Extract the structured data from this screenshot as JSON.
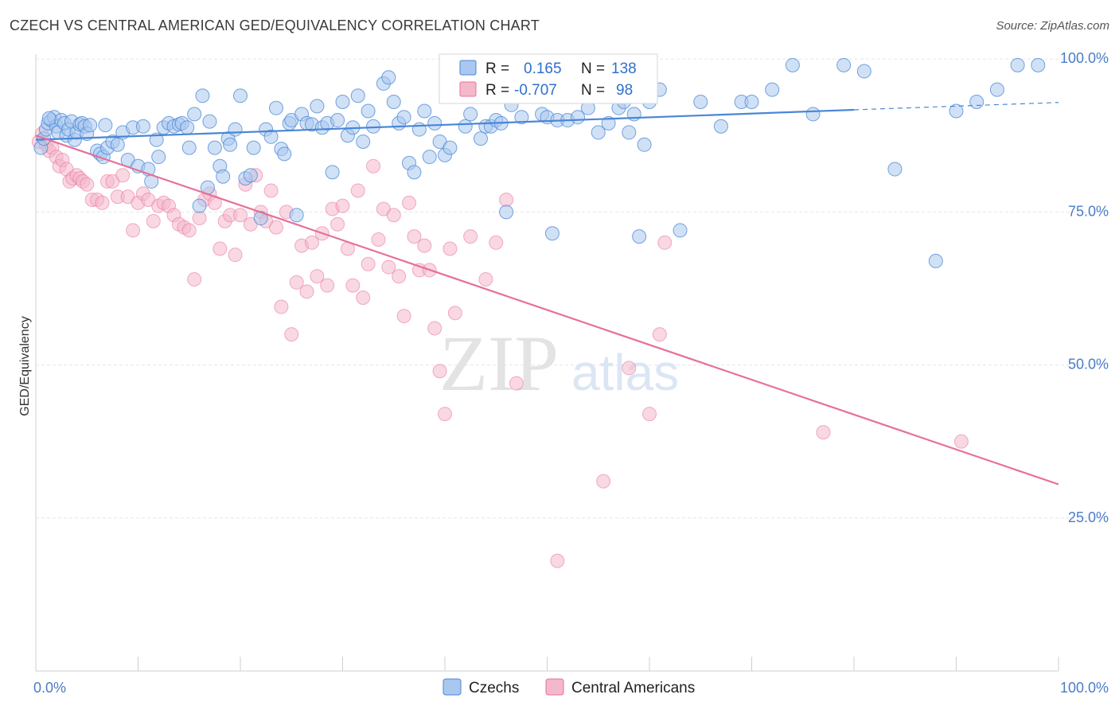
{
  "title": "CZECH VS CENTRAL AMERICAN GED/EQUIVALENCY CORRELATION CHART",
  "source": "Source: ZipAtlas.com",
  "watermark": {
    "zip": "ZIP",
    "atlas": "atlas"
  },
  "colors": {
    "czech": "#4a86d6",
    "czech_fill": "#aac8ef",
    "central": "#e76f9a",
    "central_fill": "#f4b8cb",
    "grid": "#e6e6e6",
    "axis_label": "#4a7cc9"
  },
  "legend": {
    "czech": {
      "r_label": "R =",
      "r_value": "0.165",
      "n_label": "N =",
      "n_value": "138"
    },
    "central": {
      "r_label": "R =",
      "r_value": "-0.707",
      "n_label": "N =",
      "n_value": "98"
    }
  },
  "chart_data": {
    "type": "scatter",
    "xlabel": "",
    "ylabel": "GED/Equivalency",
    "xlim": [
      0,
      100
    ],
    "ylim": [
      0,
      100
    ],
    "x_tick_labels": [
      {
        "value": 0,
        "label": "0.0%"
      },
      {
        "value": 100,
        "label": "100.0%"
      }
    ],
    "y_tick_labels": [
      {
        "value": 100,
        "label": "100.0%"
      },
      {
        "value": 75,
        "label": "75.0%"
      },
      {
        "value": 50,
        "label": "50.0%"
      },
      {
        "value": 25,
        "label": "25.0%"
      }
    ],
    "grid": true,
    "legend_position": "top-center",
    "series": [
      {
        "name": "Czechs",
        "color": "#4a86d6",
        "trend": {
          "x0": 0,
          "y0": 86.8,
          "x1": 80,
          "y1": 91.7,
          "dashed_to_x": 100,
          "dashed_to_y": 92.9
        },
        "points": [
          [
            0.5,
            85.5
          ],
          [
            0.8,
            87
          ],
          [
            1.0,
            88.5
          ],
          [
            1.2,
            89.5
          ],
          [
            1.5,
            90
          ],
          [
            1.8,
            90.5
          ],
          [
            2.0,
            89
          ],
          [
            2.2,
            88
          ],
          [
            2.5,
            90
          ],
          [
            2.8,
            89.5
          ],
          [
            3.0,
            87.5
          ],
          [
            3.2,
            88.5
          ],
          [
            3.5,
            89.8
          ],
          [
            3.8,
            86.8
          ],
          [
            4.0,
            88
          ],
          [
            4.3,
            89.3
          ],
          [
            4.5,
            89.5
          ],
          [
            4.8,
            89
          ],
          [
            5.0,
            87.8
          ],
          [
            5.3,
            89.2
          ],
          [
            6.0,
            85
          ],
          [
            6.3,
            84.5
          ],
          [
            6.6,
            84
          ],
          [
            7.0,
            85.5
          ],
          [
            7.5,
            86.5
          ],
          [
            8.0,
            86
          ],
          [
            8.5,
            88
          ],
          [
            9.0,
            83.5
          ],
          [
            9.5,
            88.8
          ],
          [
            10.0,
            82.5
          ],
          [
            10.5,
            89
          ],
          [
            11.0,
            82
          ],
          [
            11.3,
            80
          ],
          [
            11.8,
            86.8
          ],
          [
            12.0,
            84
          ],
          [
            12.5,
            88.8
          ],
          [
            13.0,
            89.5
          ],
          [
            13.5,
            89
          ],
          [
            14.0,
            89.3
          ],
          [
            14.3,
            89.5
          ],
          [
            14.8,
            88.8
          ],
          [
            15.0,
            85.5
          ],
          [
            15.5,
            91
          ],
          [
            16.0,
            76
          ],
          [
            16.3,
            94
          ],
          [
            16.8,
            79
          ],
          [
            17.0,
            89.8
          ],
          [
            17.5,
            85.5
          ],
          [
            18.0,
            82.5
          ],
          [
            18.3,
            80.8
          ],
          [
            18.8,
            87
          ],
          [
            19.0,
            86
          ],
          [
            19.5,
            88.5
          ],
          [
            20.0,
            94
          ],
          [
            20.5,
            80.5
          ],
          [
            21.0,
            81
          ],
          [
            21.3,
            85.5
          ],
          [
            22.0,
            74
          ],
          [
            22.5,
            88.5
          ],
          [
            23.0,
            87.3
          ],
          [
            23.5,
            92
          ],
          [
            24.0,
            85.3
          ],
          [
            24.3,
            84.5
          ],
          [
            24.8,
            89.5
          ],
          [
            25.0,
            90
          ],
          [
            25.5,
            74.5
          ],
          [
            26.0,
            91
          ],
          [
            26.5,
            89.5
          ],
          [
            27.0,
            89.3
          ],
          [
            27.5,
            92.3
          ],
          [
            28.0,
            88.8
          ],
          [
            28.5,
            89.5
          ],
          [
            29.0,
            81.5
          ],
          [
            29.5,
            90
          ],
          [
            30.0,
            93
          ],
          [
            30.5,
            87.5
          ],
          [
            31.0,
            88.8
          ],
          [
            31.5,
            94
          ],
          [
            32.0,
            86.5
          ],
          [
            32.5,
            91.5
          ],
          [
            33.0,
            89
          ],
          [
            34.0,
            96
          ],
          [
            34.5,
            97
          ],
          [
            35.0,
            93
          ],
          [
            35.5,
            89.5
          ],
          [
            36.0,
            90.5
          ],
          [
            36.5,
            83
          ],
          [
            37.0,
            81.5
          ],
          [
            37.5,
            88.5
          ],
          [
            38.0,
            91.5
          ],
          [
            38.5,
            84
          ],
          [
            39.0,
            89.5
          ],
          [
            39.5,
            86.5
          ],
          [
            40.0,
            84.3
          ],
          [
            40.5,
            85.5
          ],
          [
            41.0,
            94.5
          ],
          [
            41.5,
            98
          ],
          [
            42.0,
            89
          ],
          [
            42.5,
            91
          ],
          [
            43.0,
            94
          ],
          [
            43.5,
            87
          ],
          [
            44.0,
            89
          ],
          [
            44.5,
            89
          ],
          [
            45.0,
            90
          ],
          [
            45.5,
            89.5
          ],
          [
            46.0,
            75
          ],
          [
            46.5,
            92.5
          ],
          [
            47.0,
            99.5
          ],
          [
            47.5,
            90.5
          ],
          [
            48.0,
            97
          ],
          [
            49.0,
            95
          ],
          [
            49.5,
            91
          ],
          [
            50.0,
            90.5
          ],
          [
            50.5,
            71.5
          ],
          [
            51.0,
            90
          ],
          [
            51.5,
            94
          ],
          [
            52.0,
            90
          ],
          [
            53.0,
            90.5
          ],
          [
            54.0,
            92
          ],
          [
            55.0,
            88
          ],
          [
            56.0,
            89.5
          ],
          [
            57.0,
            92
          ],
          [
            57.5,
            93
          ],
          [
            58.0,
            88
          ],
          [
            58.5,
            91
          ],
          [
            59.0,
            71
          ],
          [
            59.5,
            86
          ],
          [
            60.0,
            93
          ],
          [
            61.0,
            95
          ],
          [
            63.0,
            72
          ],
          [
            65.0,
            93
          ],
          [
            67.0,
            89
          ],
          [
            69.0,
            93
          ],
          [
            70.0,
            93
          ],
          [
            72.0,
            95
          ],
          [
            74.0,
            99
          ],
          [
            76.0,
            91
          ],
          [
            79.0,
            99
          ],
          [
            81.0,
            98
          ],
          [
            84.0,
            82
          ],
          [
            88.0,
            67
          ],
          [
            90.0,
            91.5
          ],
          [
            92.0,
            93
          ],
          [
            94.0,
            95
          ],
          [
            96.0,
            99
          ],
          [
            98.0,
            99
          ],
          [
            1.3,
            90.3
          ],
          [
            6.8,
            89.2
          ]
        ]
      },
      {
        "name": "Central Americans",
        "color": "#e76f9a",
        "trend": {
          "x0": 0,
          "y0": 87.5,
          "x1": 100,
          "y1": 30.5
        },
        "points": [
          [
            0.3,
            86.5
          ],
          [
            0.6,
            87.8
          ],
          [
            1.0,
            86
          ],
          [
            1.3,
            85
          ],
          [
            1.6,
            85.5
          ],
          [
            2.0,
            84
          ],
          [
            2.3,
            82.5
          ],
          [
            2.6,
            83.5
          ],
          [
            3.0,
            82
          ],
          [
            3.3,
            80
          ],
          [
            3.6,
            80.5
          ],
          [
            4.0,
            81
          ],
          [
            4.3,
            80.5
          ],
          [
            4.6,
            80
          ],
          [
            5.0,
            79.5
          ],
          [
            5.5,
            77
          ],
          [
            6.0,
            77
          ],
          [
            6.5,
            76.5
          ],
          [
            7.0,
            80
          ],
          [
            7.5,
            80
          ],
          [
            8.0,
            77.5
          ],
          [
            8.5,
            81
          ],
          [
            9.0,
            77.5
          ],
          [
            9.5,
            72
          ],
          [
            10.0,
            76.5
          ],
          [
            10.5,
            78
          ],
          [
            11.0,
            77
          ],
          [
            11.5,
            73.5
          ],
          [
            12.0,
            76
          ],
          [
            12.5,
            76.5
          ],
          [
            13.0,
            76
          ],
          [
            13.5,
            74.5
          ],
          [
            14.0,
            73
          ],
          [
            14.5,
            72.5
          ],
          [
            15.0,
            72
          ],
          [
            15.5,
            64
          ],
          [
            16.0,
            74
          ],
          [
            16.5,
            77
          ],
          [
            17.0,
            78
          ],
          [
            17.5,
            76.5
          ],
          [
            18.0,
            69
          ],
          [
            18.5,
            73.5
          ],
          [
            19.0,
            74.5
          ],
          [
            19.5,
            68
          ],
          [
            20.0,
            74.5
          ],
          [
            20.5,
            79.5
          ],
          [
            21.0,
            73
          ],
          [
            21.5,
            81
          ],
          [
            22.0,
            75
          ],
          [
            22.5,
            73.5
          ],
          [
            23.0,
            78.5
          ],
          [
            23.5,
            72.5
          ],
          [
            24.0,
            59.5
          ],
          [
            24.5,
            75
          ],
          [
            25.0,
            55
          ],
          [
            25.5,
            63.5
          ],
          [
            26.0,
            69.5
          ],
          [
            26.5,
            62
          ],
          [
            27.0,
            70
          ],
          [
            27.5,
            64.5
          ],
          [
            28.0,
            71.5
          ],
          [
            28.5,
            63
          ],
          [
            29.0,
            75.5
          ],
          [
            29.5,
            73
          ],
          [
            30.0,
            76
          ],
          [
            30.5,
            69
          ],
          [
            31.0,
            63
          ],
          [
            31.5,
            78.5
          ],
          [
            32.0,
            61
          ],
          [
            32.5,
            66.5
          ],
          [
            33.0,
            82.5
          ],
          [
            33.5,
            70.5
          ],
          [
            34.0,
            75.5
          ],
          [
            34.5,
            66
          ],
          [
            35.0,
            74.5
          ],
          [
            35.5,
            64.5
          ],
          [
            36.0,
            58
          ],
          [
            36.5,
            76.5
          ],
          [
            37.0,
            71
          ],
          [
            37.5,
            65.5
          ],
          [
            38.0,
            69.5
          ],
          [
            38.5,
            65.5
          ],
          [
            39.0,
            56
          ],
          [
            39.5,
            49
          ],
          [
            40.0,
            42
          ],
          [
            40.5,
            69
          ],
          [
            41.0,
            58.5
          ],
          [
            42.5,
            71
          ],
          [
            44.0,
            64
          ],
          [
            45.0,
            70
          ],
          [
            46.0,
            77
          ],
          [
            47.0,
            47
          ],
          [
            51.0,
            18
          ],
          [
            55.5,
            31
          ],
          [
            58.0,
            49.5
          ],
          [
            60.0,
            42
          ],
          [
            61.0,
            55
          ],
          [
            61.5,
            70
          ],
          [
            77.0,
            39
          ],
          [
            90.5,
            37.5
          ]
        ]
      }
    ]
  }
}
